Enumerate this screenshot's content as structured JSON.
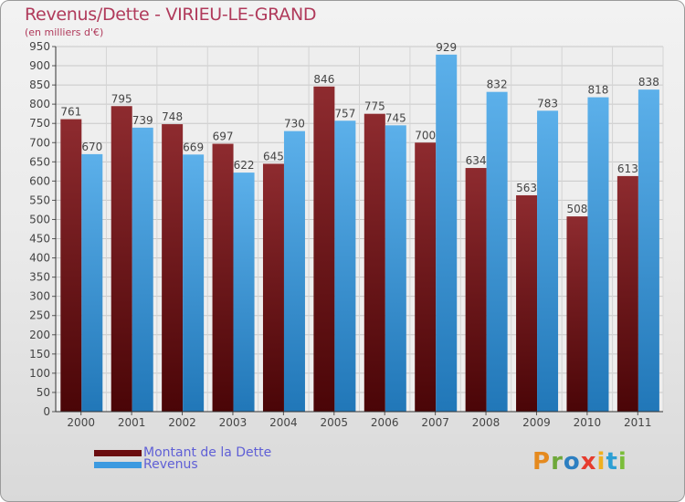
{
  "chart_data": {
    "type": "bar",
    "title": "Revenus/Dette - VIRIEU-LE-GRAND",
    "subtitle": "(en milliers d'€)",
    "categories": [
      "2000",
      "2001",
      "2002",
      "2003",
      "2004",
      "2005",
      "2006",
      "2007",
      "2008",
      "2009",
      "2010",
      "2011"
    ],
    "series": [
      {
        "name": "Montant de la Dette",
        "color": "#7a1a1d",
        "values": [
          761,
          795,
          748,
          697,
          645,
          846,
          775,
          700,
          634,
          563,
          508,
          613
        ]
      },
      {
        "name": "Revenus",
        "color": "#3c9ae0",
        "values": [
          670,
          739,
          669,
          622,
          730,
          757,
          745,
          929,
          832,
          783,
          818,
          838
        ]
      }
    ],
    "ylim": [
      0,
      950
    ],
    "yticks": [
      0,
      50,
      100,
      150,
      200,
      250,
      300,
      350,
      400,
      450,
      500,
      550,
      600,
      650,
      700,
      750,
      800,
      850,
      900,
      950
    ],
    "grid": true,
    "legend": "bottom-left"
  },
  "logo": {
    "letters": [
      "P",
      "r",
      "o",
      "x",
      "i",
      "t",
      "i"
    ],
    "colors": [
      "#e58a1f",
      "#6fa83a",
      "#2d7fc1",
      "#e63c2e",
      "#f0b020",
      "#2d9fd4",
      "#7bbd3a"
    ]
  }
}
